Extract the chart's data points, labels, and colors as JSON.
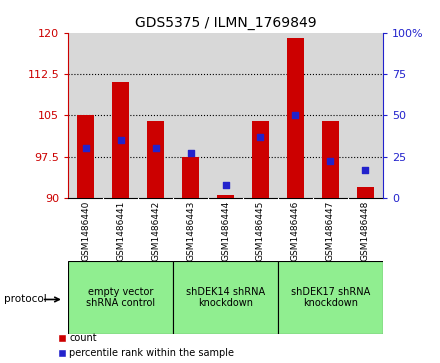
{
  "title": "GDS5375 / ILMN_1769849",
  "samples": [
    "GSM1486440",
    "GSM1486441",
    "GSM1486442",
    "GSM1486443",
    "GSM1486444",
    "GSM1486445",
    "GSM1486446",
    "GSM1486447",
    "GSM1486448"
  ],
  "counts": [
    105,
    111,
    104,
    97.5,
    90.5,
    104,
    119,
    104,
    92
  ],
  "percentiles": [
    30,
    35,
    30,
    27,
    8,
    37,
    50,
    22,
    17
  ],
  "ylim_left": [
    90,
    120
  ],
  "ylim_right": [
    0,
    100
  ],
  "yticks_left": [
    90,
    97.5,
    105,
    112.5,
    120
  ],
  "yticks_right": [
    0,
    25,
    50,
    75,
    100
  ],
  "groups": [
    {
      "label": "empty vector\nshRNA control",
      "start": 0,
      "end": 3,
      "color": "#90EE90"
    },
    {
      "label": "shDEK14 shRNA\nknockdown",
      "start": 3,
      "end": 6,
      "color": "#90EE90"
    },
    {
      "label": "shDEK17 shRNA\nknockdown",
      "start": 6,
      "end": 9,
      "color": "#90EE90"
    }
  ],
  "bar_color": "#cc0000",
  "dot_color": "#2222cc",
  "bar_width": 0.5,
  "dot_size": 18,
  "protocol_label": "protocol",
  "legend_count_label": "count",
  "legend_percentile_label": "percentile rank within the sample",
  "left_axis_color": "#cc0000",
  "right_axis_color": "#2222cc",
  "background_color": "#ffffff",
  "plot_bg_color": "#d8d8d8",
  "sample_bg_color": "#d8d8d8"
}
